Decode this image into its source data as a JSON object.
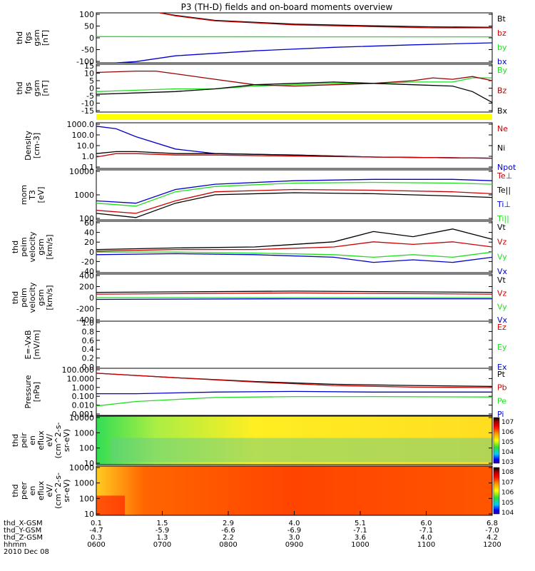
{
  "title": "P3 (TH-D) fields and on-board moments overview",
  "colors": {
    "black": "#000000",
    "red": "#cc0000",
    "green": "#22dd22",
    "blue": "#0000cc",
    "yellow": "#ffff00",
    "darkred": "#990000"
  },
  "chart_data": [
    {
      "type": "line",
      "id": "fgs-gsm-nT",
      "ylabel": [
        "thd",
        "fgs",
        "gsm",
        "[nT]"
      ],
      "ylim": [
        -100,
        100
      ],
      "yticks": [
        "100",
        "50",
        "0",
        "-50",
        "-100"
      ],
      "legend": [
        {
          "name": "Bt",
          "color": "black"
        },
        {
          "name": "bz",
          "color": "red"
        },
        {
          "name": "by",
          "color": "green"
        },
        {
          "name": "bx",
          "color": "blue"
        }
      ],
      "series": [
        {
          "name": "Bt",
          "color": "black",
          "x": [
            0.16,
            0.2,
            0.3,
            0.5,
            0.7,
            0.85,
            1.0
          ],
          "y": [
            100,
            90,
            70,
            55,
            48,
            44,
            42
          ]
        },
        {
          "name": "bz",
          "color": "red",
          "x": [
            0.16,
            0.2,
            0.3,
            0.5,
            0.7,
            0.85,
            1.0
          ],
          "y": [
            100,
            88,
            68,
            52,
            45,
            40,
            40
          ]
        },
        {
          "name": "by",
          "color": "green",
          "x": [
            0,
            0.5,
            1.0
          ],
          "y": [
            5,
            4,
            4
          ]
        },
        {
          "name": "bx",
          "color": "blue",
          "x": [
            0.05,
            0.1,
            0.2,
            0.4,
            0.6,
            0.8,
            1.0
          ],
          "y": [
            -100,
            -95,
            -72,
            -52,
            -38,
            -28,
            -20
          ]
        }
      ]
    },
    {
      "type": "line",
      "id": "fgs-gsm-zoom",
      "ylabel": [
        "thd",
        "fgs",
        "gsm",
        "[nT]"
      ],
      "ylim": [
        -20,
        15
      ],
      "yticks": [
        "15",
        "10",
        "5",
        "0",
        "-5",
        "-10",
        "-15"
      ],
      "legend": [
        {
          "name": "By",
          "color": "green"
        },
        {
          "name": "Bz",
          "color": "darkred"
        },
        {
          "name": "Bx",
          "color": "black"
        }
      ],
      "series": [
        {
          "name": "By",
          "color": "green",
          "x": [
            0,
            0.1,
            0.2,
            0.3,
            0.4,
            0.5,
            0.6,
            0.7,
            0.8,
            0.9,
            0.95,
            1.0
          ],
          "y": [
            -5,
            -4,
            -3,
            -3,
            -1,
            0,
            1,
            1,
            2,
            2,
            5,
            5
          ]
        },
        {
          "name": "Bz",
          "color": "darkred",
          "x": [
            0,
            0.1,
            0.15,
            0.2,
            0.3,
            0.4,
            0.5,
            0.6,
            0.7,
            0.8,
            0.85,
            0.9,
            0.95,
            1.0
          ],
          "y": [
            9,
            10,
            10,
            8,
            4,
            0,
            -1,
            0,
            1,
            3,
            5,
            4,
            6,
            3
          ]
        },
        {
          "name": "Bx",
          "color": "black",
          "x": [
            0,
            0.1,
            0.2,
            0.3,
            0.4,
            0.5,
            0.6,
            0.7,
            0.8,
            0.9,
            0.95,
            1.0
          ],
          "y": [
            -7,
            -6,
            -5,
            -3,
            0,
            1,
            2,
            1,
            0,
            -1,
            -5,
            -13
          ]
        }
      ]
    },
    {
      "type": "line",
      "id": "density",
      "log": true,
      "ylabel": [
        "Density",
        "[cm-3]"
      ],
      "ylim": [
        0.1,
        1000
      ],
      "yticks": [
        "1000.0",
        "100.0",
        "10.0",
        "1.0",
        "0.1"
      ],
      "legend": [
        {
          "name": "Ne",
          "color": "red"
        },
        {
          "name": "Ni",
          "color": "black"
        },
        {
          "name": "Npot",
          "color": "blue"
        }
      ],
      "series": [
        {
          "name": "Npot",
          "color": "blue",
          "x": [
            0,
            0.05,
            0.1,
            0.2,
            0.3,
            0.5,
            0.7,
            1.0
          ],
          "y": [
            500,
            300,
            60,
            5,
            2,
            1.5,
            1,
            0.8
          ]
        },
        {
          "name": "Ni",
          "color": "black",
          "x": [
            0,
            0.05,
            0.1,
            0.2,
            0.3,
            0.5,
            0.7,
            1.0
          ],
          "y": [
            2,
            3,
            3,
            2,
            2,
            1.5,
            1,
            0.8
          ]
        },
        {
          "name": "Ne",
          "color": "red",
          "x": [
            0,
            0.05,
            0.1,
            0.2,
            0.3,
            0.5,
            0.7,
            1.0
          ],
          "y": [
            1,
            2,
            2,
            1.5,
            1.5,
            1.2,
            1,
            0.8
          ]
        }
      ]
    },
    {
      "type": "line",
      "id": "temperature",
      "log": true,
      "ylabel": [
        "mom",
        "T3",
        "[eV]"
      ],
      "ylim": [
        80,
        10000
      ],
      "yticks": [
        "10000",
        "1000",
        "100"
      ],
      "legend": [
        {
          "name": "Te⊥",
          "color": "red"
        },
        {
          "name": "Te||",
          "color": "black"
        },
        {
          "name": "Ti⊥",
          "color": "blue"
        },
        {
          "name": "Ti||",
          "color": "green"
        }
      ],
      "series": [
        {
          "name": "Ti⊥",
          "color": "blue",
          "x": [
            0,
            0.1,
            0.2,
            0.3,
            0.5,
            0.7,
            0.9,
            1.0
          ],
          "y": [
            500,
            400,
            1500,
            2500,
            3500,
            4000,
            4000,
            3500
          ]
        },
        {
          "name": "Ti||",
          "color": "green",
          "x": [
            0,
            0.1,
            0.2,
            0.3,
            0.5,
            0.7,
            0.9,
            1.0
          ],
          "y": [
            400,
            300,
            1200,
            2000,
            2800,
            3000,
            2800,
            2500
          ]
        },
        {
          "name": "Te⊥",
          "color": "red",
          "x": [
            0,
            0.1,
            0.2,
            0.3,
            0.5,
            0.7,
            0.9,
            1.0
          ],
          "y": [
            200,
            150,
            500,
            1200,
            1500,
            1400,
            1200,
            1000
          ]
        },
        {
          "name": "Te||",
          "color": "black",
          "x": [
            0,
            0.1,
            0.2,
            0.3,
            0.5,
            0.7,
            0.9,
            1.0
          ],
          "y": [
            150,
            100,
            400,
            900,
            1100,
            1000,
            800,
            700
          ]
        }
      ]
    },
    {
      "type": "line",
      "id": "velocity-small",
      "ylabel": [
        "thd",
        "peim",
        "velocity",
        "gsm",
        "[km/s]"
      ],
      "ylim": [
        -40,
        60
      ],
      "yticks": [
        "60",
        "40",
        "20",
        "0",
        "-20",
        "-40"
      ],
      "legend": [
        {
          "name": "Vt",
          "color": "black"
        },
        {
          "name": "Vz",
          "color": "red"
        },
        {
          "name": "Vy",
          "color": "green"
        },
        {
          "name": "Vx",
          "color": "blue"
        }
      ],
      "series": [
        {
          "name": "Vx",
          "color": "blue",
          "x": [
            0,
            0.2,
            0.4,
            0.6,
            0.7,
            0.8,
            0.9,
            1.0
          ],
          "y": [
            -5,
            -3,
            -5,
            -10,
            -20,
            -15,
            -20,
            -10
          ]
        },
        {
          "name": "Vy",
          "color": "green",
          "x": [
            0,
            0.2,
            0.4,
            0.6,
            0.7,
            0.8,
            0.9,
            1.0
          ],
          "y": [
            0,
            0,
            -2,
            -5,
            -10,
            -5,
            -10,
            0
          ]
        },
        {
          "name": "Vz",
          "color": "red",
          "x": [
            0,
            0.2,
            0.4,
            0.6,
            0.7,
            0.8,
            0.9,
            1.0
          ],
          "y": [
            2,
            5,
            5,
            10,
            20,
            15,
            20,
            10
          ]
        },
        {
          "name": "Vt",
          "color": "black",
          "x": [
            0,
            0.2,
            0.4,
            0.6,
            0.7,
            0.8,
            0.9,
            1.0
          ],
          "y": [
            5,
            8,
            10,
            20,
            40,
            30,
            45,
            25
          ]
        }
      ]
    },
    {
      "type": "line",
      "id": "velocity-large",
      "ylabel": [
        "thd",
        "peim",
        "velocity",
        "gsm",
        "[km/s]"
      ],
      "ylim": [
        -400,
        400
      ],
      "yticks": [
        "400",
        "200",
        "0",
        "-200",
        "-400"
      ],
      "legend": [
        {
          "name": "Vt",
          "color": "black"
        },
        {
          "name": "Vz",
          "color": "red"
        },
        {
          "name": "Vy",
          "color": "green"
        },
        {
          "name": "Vx",
          "color": "blue"
        }
      ],
      "series": [
        {
          "name": "Vx",
          "color": "blue",
          "x": [
            0,
            0.5,
            1.0
          ],
          "y": [
            -30,
            -20,
            -20
          ]
        },
        {
          "name": "Vy",
          "color": "green",
          "x": [
            0,
            0.5,
            1.0
          ],
          "y": [
            0,
            0,
            0
          ]
        },
        {
          "name": "Vz",
          "color": "red",
          "x": [
            0,
            0.5,
            1.0
          ],
          "y": [
            60,
            80,
            60
          ]
        },
        {
          "name": "Vt",
          "color": "black",
          "x": [
            0,
            0.5,
            1.0
          ],
          "y": [
            90,
            110,
            90
          ]
        }
      ]
    },
    {
      "type": "line",
      "id": "efield",
      "ylabel": [
        "E=-VxB",
        "[mV/m]"
      ],
      "ylim": [
        0,
        1
      ],
      "yticks": [
        "1.0",
        "0.8",
        "0.6",
        "0.4",
        "0.2",
        "0.0"
      ],
      "legend": [
        {
          "name": "Ez",
          "color": "red"
        },
        {
          "name": "Ey",
          "color": "green"
        },
        {
          "name": "Ex",
          "color": "blue"
        }
      ],
      "series": []
    },
    {
      "type": "line",
      "id": "pressure",
      "log": true,
      "ylabel": [
        "Pressure",
        "[nPa]"
      ],
      "ylim": [
        0.001,
        100
      ],
      "yticks": [
        "100.000",
        "10.000",
        "1.000",
        "0.100",
        "0.010",
        "0.001"
      ],
      "legend": [
        {
          "name": "Pt",
          "color": "black"
        },
        {
          "name": "Pb",
          "color": "red"
        },
        {
          "name": "Pe",
          "color": "green"
        },
        {
          "name": "Pi",
          "color": "blue"
        }
      ],
      "series": [
        {
          "name": "Pt",
          "color": "black",
          "x": [
            0,
            0.2,
            0.4,
            0.6,
            0.8,
            1.0
          ],
          "y": [
            30,
            10,
            4,
            2,
            1.5,
            1.2
          ]
        },
        {
          "name": "Pb",
          "color": "red",
          "x": [
            0,
            0.2,
            0.4,
            0.6,
            0.8,
            1.0
          ],
          "y": [
            30,
            10,
            3.5,
            1.5,
            1.0,
            0.9
          ]
        },
        {
          "name": "Pi",
          "color": "blue",
          "x": [
            0,
            0.1,
            0.3,
            0.5,
            0.7,
            1.0
          ],
          "y": [
            0.2,
            0.2,
            0.3,
            0.35,
            0.3,
            0.3
          ]
        },
        {
          "name": "Pe",
          "color": "green",
          "x": [
            0,
            0.1,
            0.3,
            0.5,
            0.7,
            1.0
          ],
          "y": [
            0.01,
            0.03,
            0.08,
            0.1,
            0.1,
            0.09
          ]
        }
      ]
    },
    {
      "type": "heatmap",
      "id": "peir-eflux",
      "ylabel": [
        "thd",
        "peir",
        "en",
        "eflux",
        "eV/",
        "(cm^2-s-",
        "sr-eV)"
      ],
      "yticks": [
        "10000",
        "1000",
        "100",
        "10"
      ],
      "colorbar": [
        "10^7",
        "10^6",
        "10^5",
        "10^4",
        "10^3"
      ]
    },
    {
      "type": "heatmap",
      "id": "peer-eflux",
      "ylabel": [
        "thd",
        "peer",
        "en",
        "eflux",
        "eV/",
        "(cm^2-s-",
        "sr-eV)"
      ],
      "yticks": [
        "10000",
        "1000",
        "100",
        "10"
      ],
      "colorbar": [
        "10^8",
        "10^7",
        "10^6",
        "10^5",
        "10^4"
      ]
    }
  ],
  "xaxis": {
    "rows": [
      {
        "label": "thd_X-GSM",
        "values": [
          "0.1",
          "1.5",
          "2.9",
          "4.0",
          "5.1",
          "6.0",
          "6.8"
        ]
      },
      {
        "label": "thd_Y-GSM",
        "values": [
          "-4.7",
          "-5.9",
          "-6.6",
          "-6.9",
          "-7.1",
          "-7.1",
          "-7.0"
        ]
      },
      {
        "label": "thd_Z-GSM",
        "values": [
          "0.3",
          "1.3",
          "2.2",
          "3.0",
          "3.6",
          "4.0",
          "4.2"
        ]
      },
      {
        "label": "hhmm",
        "values": [
          "0600",
          "0700",
          "0800",
          "0900",
          "1000",
          "1100",
          "1200"
        ]
      }
    ],
    "date": "2010 Dec 08"
  }
}
